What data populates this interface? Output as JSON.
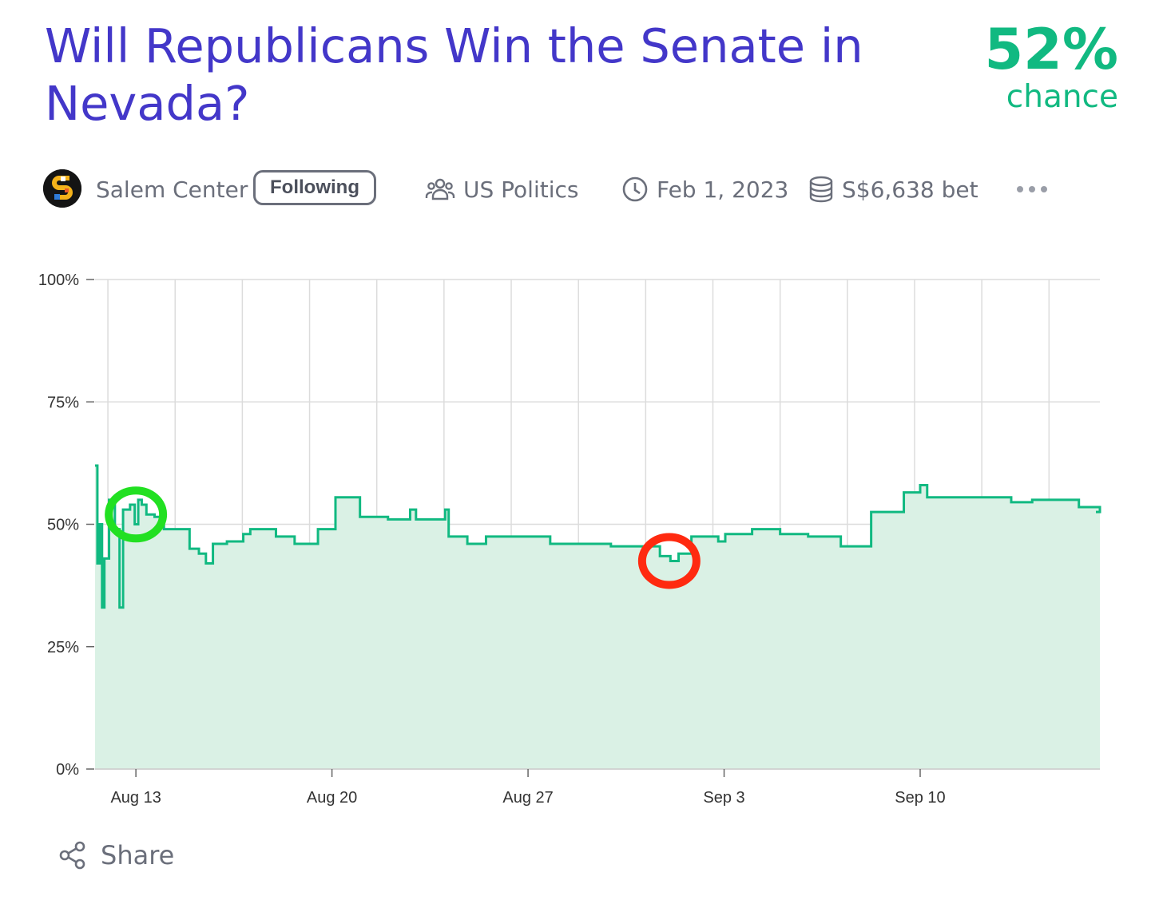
{
  "header": {
    "title": "Will Republicans Win the Senate in Nevada?",
    "probability": "52%",
    "probability_label": "chance",
    "accent_color": "#11b981",
    "title_color": "#4337c9"
  },
  "meta": {
    "avatar_icon": "salem-logo-icon",
    "creator": "Salem Center",
    "follow_label": "Following",
    "group_icon": "users-icon",
    "group": "US Politics",
    "close_icon": "clock-icon",
    "close_date": "Feb 1, 2023",
    "volume_icon": "coins-icon",
    "volume": "S$6,638 bet",
    "more_icon": "more-dots-icon"
  },
  "share": {
    "icon": "share-icon",
    "label": "Share"
  },
  "chart_data": {
    "type": "area",
    "title": "",
    "xlabel": "",
    "ylabel": "",
    "x_ticks": [
      "Aug 13",
      "Aug 20",
      "Aug 27",
      "Sep 3",
      "Sep 10"
    ],
    "y_ticks": [
      "0%",
      "25%",
      "50%",
      "75%",
      "100%"
    ],
    "ylim": [
      0,
      100
    ],
    "xlim": [
      "2022-08-11T13:00",
      "2022-09-16T10:00"
    ],
    "grid": true,
    "line_color": "#11b981",
    "fill_color": "#daf1e5",
    "series": [
      {
        "points": [
          [
            "2022-08-11T13:00",
            62
          ],
          [
            "2022-08-11T15:00",
            42
          ],
          [
            "2022-08-11T17:00",
            50
          ],
          [
            "2022-08-11T19:00",
            33
          ],
          [
            "2022-08-11T21:00",
            43
          ],
          [
            "2022-08-12T01:00",
            55
          ],
          [
            "2022-08-12T06:00",
            49
          ],
          [
            "2022-08-12T10:00",
            33
          ],
          [
            "2022-08-12T13:00",
            53
          ],
          [
            "2022-08-12T19:00",
            54
          ],
          [
            "2022-08-12T23:00",
            50
          ],
          [
            "2022-08-13T02:00",
            55
          ],
          [
            "2022-08-13T05:00",
            54
          ],
          [
            "2022-08-13T09:00",
            52
          ],
          [
            "2022-08-13T16:00",
            51.5
          ],
          [
            "2022-08-14T00:00",
            49
          ],
          [
            "2022-08-14T22:00",
            45
          ],
          [
            "2022-08-15T06:00",
            44
          ],
          [
            "2022-08-15T12:00",
            42
          ],
          [
            "2022-08-15T18:00",
            46
          ],
          [
            "2022-08-16T06:00",
            46.5
          ],
          [
            "2022-08-16T20:00",
            48
          ],
          [
            "2022-08-17T02:00",
            49
          ],
          [
            "2022-08-18T00:00",
            47.5
          ],
          [
            "2022-08-18T16:00",
            46
          ],
          [
            "2022-08-19T12:00",
            49
          ],
          [
            "2022-08-20T03:00",
            55.5
          ],
          [
            "2022-08-21T00:00",
            51.5
          ],
          [
            "2022-08-22T00:00",
            51
          ],
          [
            "2022-08-22T19:00",
            53
          ],
          [
            "2022-08-23T00:00",
            51
          ],
          [
            "2022-08-24T01:00",
            53
          ],
          [
            "2022-08-24T04:00",
            47.5
          ],
          [
            "2022-08-24T20:00",
            46
          ],
          [
            "2022-08-25T12:00",
            47.5
          ],
          [
            "2022-08-27T19:00",
            46
          ],
          [
            "2022-08-29T23:00",
            45.5
          ],
          [
            "2022-08-31T17:00",
            43.5
          ],
          [
            "2022-09-01T02:00",
            42.5
          ],
          [
            "2022-09-01T09:00",
            44
          ],
          [
            "2022-09-01T20:00",
            47.5
          ],
          [
            "2022-09-02T19:00",
            46.5
          ],
          [
            "2022-09-03T01:00",
            48
          ],
          [
            "2022-09-04T00:00",
            49
          ],
          [
            "2022-09-05T00:00",
            48
          ],
          [
            "2022-09-06T00:00",
            47.5
          ],
          [
            "2022-09-07T04:00",
            45.5
          ],
          [
            "2022-09-08T06:00",
            52.5
          ],
          [
            "2022-09-09T10:00",
            56.5
          ],
          [
            "2022-09-10T00:00",
            58
          ],
          [
            "2022-09-10T06:00",
            55.5
          ],
          [
            "2022-09-12T07:00",
            55.5
          ],
          [
            "2022-09-13T00:00",
            55.5
          ],
          [
            "2022-09-13T06:00",
            54.5
          ],
          [
            "2022-09-14T00:00",
            55
          ],
          [
            "2022-09-15T16:00",
            53.5
          ],
          [
            "2022-09-16T10:00",
            52.5
          ]
        ]
      }
    ],
    "annotations": [
      {
        "shape": "circle",
        "color": "#22e022",
        "x": "2022-08-13T00:00",
        "y": 52
      },
      {
        "shape": "circle",
        "color": "#ff2a10",
        "x": "2022-09-01T01:00",
        "y": 42.5
      }
    ]
  }
}
